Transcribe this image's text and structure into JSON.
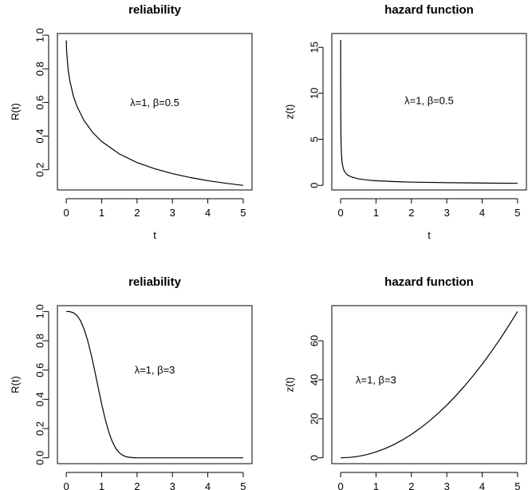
{
  "chart_data": [
    {
      "type": "line",
      "title": "reliability",
      "xlabel": "t",
      "ylabel": "R(t)",
      "annotation": "λ=1, β=0.5",
      "xlim": [
        -0.25,
        5.25
      ],
      "ylim": [
        0.08,
        1.01
      ],
      "xticks": [
        0,
        1,
        2,
        3,
        4,
        5
      ],
      "yticks": [
        0.2,
        0.4,
        0.6,
        0.8,
        1.0
      ],
      "ytick_labels": [
        "0.2",
        "0.4",
        "0.6",
        "0.8",
        "1.0"
      ],
      "annotation_pos": [
        2.5,
        0.6
      ],
      "series": [
        {
          "x": [
            0.001,
            0.01,
            0.05,
            0.1,
            0.2,
            0.3,
            0.5,
            0.75,
            1,
            1.5,
            2,
            2.5,
            3,
            3.5,
            4,
            4.5,
            5
          ],
          "y": [
            0.969,
            0.905,
            0.8,
            0.729,
            0.639,
            0.578,
            0.493,
            0.421,
            0.368,
            0.294,
            0.243,
            0.206,
            0.177,
            0.154,
            0.135,
            0.12,
            0.107
          ]
        }
      ]
    },
    {
      "type": "line",
      "title": "hazard function",
      "xlabel": "t",
      "ylabel": "z(t)",
      "annotation": "λ=1, β=0.5",
      "xlim": [
        -0.25,
        5.25
      ],
      "ylim": [
        -0.5,
        16.5
      ],
      "xticks": [
        0,
        1,
        2,
        3,
        4,
        5
      ],
      "yticks": [
        0,
        5,
        10,
        15
      ],
      "ytick_labels": [
        "0",
        "5",
        "10",
        "15"
      ],
      "annotation_pos": [
        2.5,
        9.2
      ],
      "series": [
        {
          "x": [
            0.001,
            0.002,
            0.004,
            0.007,
            0.01,
            0.02,
            0.04,
            0.07,
            0.1,
            0.15,
            0.2,
            0.3,
            0.5,
            0.75,
            1,
            1.5,
            2,
            3,
            4,
            5
          ],
          "y": [
            15.81,
            11.18,
            7.91,
            5.98,
            5.0,
            3.54,
            2.5,
            1.89,
            1.58,
            1.29,
            1.12,
            0.91,
            0.71,
            0.58,
            0.5,
            0.41,
            0.35,
            0.29,
            0.25,
            0.22
          ]
        }
      ]
    },
    {
      "type": "line",
      "title": "reliability",
      "xlabel": "",
      "ylabel": "R(t)",
      "annotation": "λ=1, β=3",
      "xlim": [
        -0.25,
        5.25
      ],
      "ylim": [
        -0.04,
        1.04
      ],
      "xticks": [
        0,
        1,
        2,
        3,
        4,
        5
      ],
      "yticks": [
        0,
        0.2,
        0.4,
        0.6,
        0.8,
        1.0
      ],
      "ytick_labels": [
        "0.0",
        "0.2",
        "0.4",
        "0.6",
        "0.8",
        "1.0"
      ],
      "annotation_pos": [
        2.5,
        0.6
      ],
      "series": [
        {
          "x": [
            0,
            0.1,
            0.2,
            0.3,
            0.4,
            0.5,
            0.6,
            0.7,
            0.8,
            0.9,
            1.0,
            1.1,
            1.2,
            1.3,
            1.4,
            1.5,
            1.6,
            1.7,
            1.8,
            1.9,
            2.0,
            2.5,
            3,
            4,
            5
          ],
          "y": [
            1.0,
            0.999,
            0.992,
            0.973,
            0.938,
            0.882,
            0.806,
            0.71,
            0.6,
            0.482,
            0.368,
            0.264,
            0.178,
            0.111,
            0.064,
            0.034,
            0.017,
            0.007,
            0.003,
            0.001,
            0.0,
            0.0,
            0.0,
            0.0,
            0.0
          ]
        }
      ]
    },
    {
      "type": "line",
      "title": "hazard function",
      "xlabel": "",
      "ylabel": "z(t)",
      "annotation": "λ=1, β=3",
      "xlim": [
        -0.25,
        5.25
      ],
      "ylim": [
        -3,
        78
      ],
      "xticks": [
        0,
        1,
        2,
        3,
        4,
        5
      ],
      "yticks": [
        0,
        20,
        40,
        60
      ],
      "ytick_labels": [
        "0",
        "20",
        "40",
        "60"
      ],
      "annotation_pos": [
        1.0,
        40
      ],
      "series": [
        {
          "x": [
            0,
            0.25,
            0.5,
            0.75,
            1,
            1.25,
            1.5,
            1.75,
            2,
            2.25,
            2.5,
            2.75,
            3,
            3.25,
            3.5,
            3.75,
            4,
            4.25,
            4.5,
            4.75,
            5
          ],
          "y": [
            0,
            0.19,
            0.75,
            1.69,
            3,
            4.69,
            6.75,
            9.19,
            12,
            15.19,
            18.75,
            22.69,
            27,
            31.69,
            36.75,
            42.19,
            48,
            54.19,
            60.75,
            67.69,
            75
          ]
        }
      ]
    }
  ]
}
